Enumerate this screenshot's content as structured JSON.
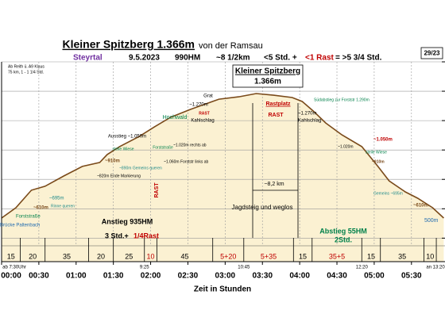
{
  "chart_data": {
    "type": "line",
    "title": "Kleiner Spitzberg 1.366m",
    "subtitle": "von der Ramsau",
    "region": "Steyrtal",
    "date": "9.5.2023",
    "ascent": "990HM",
    "distance": "~8 1/2km",
    "time_walk": "<5 Std. +",
    "time_rest": "<1 Rast",
    "time_total": "= >5 3/4 Std.",
    "page_number": "29/23",
    "note": [
      "Ab Reith ü. A9 Klaus",
      "75 km, 1 - 1 1/4 Std."
    ],
    "x_label": "Zeit in Stunden",
    "x": [
      0,
      11.5,
      24,
      35,
      50,
      65,
      79,
      85,
      95,
      111,
      123,
      136,
      152,
      166,
      175,
      191,
      205,
      219,
      234,
      242,
      251,
      261,
      274,
      290,
      303,
      312,
      325,
      335,
      347,
      356
    ],
    "series": [
      {
        "color": "#7a4a1a",
        "fill": "#fbf1d2",
        "values": [
          537,
          607,
          726,
          753,
          823,
          888,
          915,
          969,
          1023,
          1093,
          1157,
          1222,
          1276,
          1319,
          1346,
          1362,
          1384,
          1373,
          1357,
          1330,
          1265,
          1184,
          1103,
          1023,
          888,
          790,
          715,
          672,
          607,
          537
        ]
      }
    ],
    "xlim": [
      0,
      357
    ],
    "xticks": [
      {
        "value": 0,
        "label": "00:00"
      },
      {
        "value": 30,
        "label": "00:30"
      },
      {
        "value": 60,
        "label": "01:00"
      },
      {
        "value": 90,
        "label": "01:30"
      },
      {
        "value": 120,
        "label": "02:00"
      },
      {
        "value": 150,
        "label": "02:30"
      },
      {
        "value": 180,
        "label": "03:00"
      },
      {
        "value": 210,
        "label": "03:30"
      },
      {
        "value": 240,
        "label": "04:00"
      },
      {
        "value": 270,
        "label": "04:30"
      },
      {
        "value": 300,
        "label": "05:00"
      },
      {
        "value": 330,
        "label": "05:30"
      }
    ],
    "ylim": [
      240,
      1600
    ],
    "yticks": [
      400,
      600,
      800,
      1000,
      1200,
      1400,
      1600
    ],
    "grid": true,
    "clock_marks": [
      {
        "value": 0,
        "label": "ab 7:30Uhr"
      },
      {
        "value": 115,
        "label": "9:25"
      },
      {
        "value": 195,
        "label": "10:45"
      },
      {
        "value": 290,
        "label": "12:20"
      },
      {
        "value": 350,
        "label": "an 13:20"
      }
    ],
    "durations": [
      {
        "value": 15,
        "label": "15"
      },
      {
        "value": 20,
        "label": "20"
      },
      {
        "value": 35,
        "label": "35"
      },
      {
        "value": 20,
        "label": "20"
      },
      {
        "value": 25,
        "label": "25"
      },
      {
        "value": 10,
        "label": "10"
      },
      {
        "value": 45,
        "label": "45"
      },
      {
        "value": 25,
        "label": "5+20"
      },
      {
        "value": 40,
        "label": "5+35"
      },
      {
        "value": 15,
        "label": "15"
      },
      {
        "value": 40,
        "label": "35+5"
      },
      {
        "value": 15,
        "label": "15"
      },
      {
        "value": 35,
        "label": "35"
      },
      {
        "value": 10,
        "label": "10"
      }
    ],
    "duration_colors": [
      "#000",
      "#000",
      "#000",
      "#000",
      "#000",
      "#c00000",
      "#000",
      "#c00000",
      "#c00000",
      "#000",
      "#c00000",
      "#000",
      "#000",
      "#000"
    ],
    "annotations": [
      "Grat",
      "Hochwald",
      "Ausstieg ~1.050m",
      "~910m",
      "~890m Gemeins queren",
      "~820m Ende Markierung",
      "~695m",
      "Rinne queren",
      "~610m",
      "Forststraße",
      "Brücke Paltenbach",
      "steile Wiese",
      "Forststraße",
      "~1.020m rechts ab",
      "~1.060m Forststr links ab",
      "~1.270m",
      "RAST",
      "Kahlschlag",
      "Rastplatz",
      "RAST",
      "Südabstieg zur Forststr 1.290m",
      "~1.270m",
      "Kahlschlag",
      "~1.020m",
      "~1.050m",
      "steile Wiese",
      "~910m",
      "Gemeins ~695m",
      "~610m",
      "500m",
      "~8,2 km",
      "Jagdsteig und weglos",
      "Anstieg 935HM",
      "3 Std.+",
      "1/4Rast",
      "Abstieg 55HM",
      "2Std.",
      "Kleiner Spitzberg",
      "1.366m",
      "RAST"
    ]
  }
}
